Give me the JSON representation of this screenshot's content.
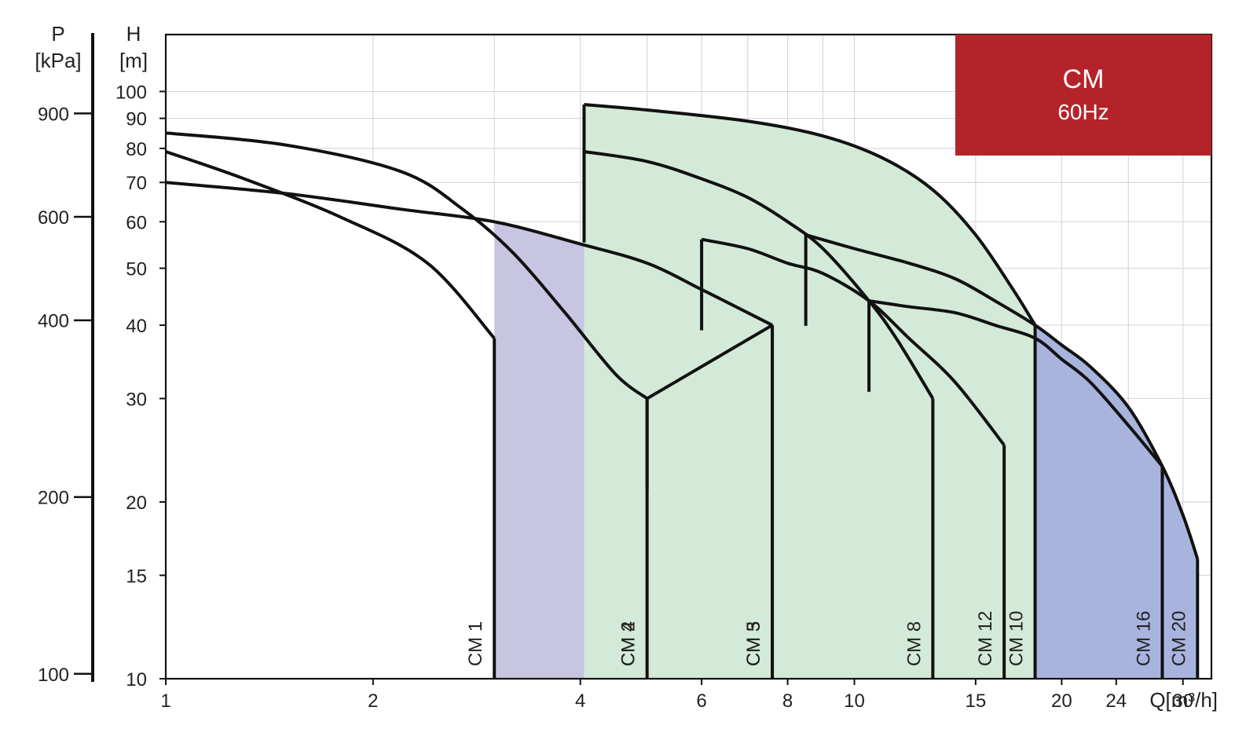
{
  "chart_data": {
    "type": "area",
    "title": "CM",
    "subtitle": "60Hz",
    "x_axis": {
      "label": "Q[m³/h]",
      "scale": "log",
      "range": [
        1,
        33
      ],
      "ticks": [
        1,
        2,
        4,
        6,
        8,
        10,
        15,
        20,
        24,
        30
      ],
      "tick_labels": [
        "1",
        "2",
        "4",
        "6",
        "8",
        "10",
        "15",
        "20",
        "24",
        "30"
      ],
      "gridlines": [
        1,
        2,
        3,
        4,
        5,
        6,
        7,
        8,
        9,
        10,
        15,
        20,
        25,
        30
      ]
    },
    "y_axis": {
      "label_top": "H",
      "unit": "[m]",
      "scale": "log",
      "range": [
        10,
        125
      ],
      "ticks": [
        10,
        15,
        20,
        30,
        40,
        50,
        60,
        70,
        80,
        90,
        100
      ],
      "tick_labels": [
        "10",
        "15",
        "20",
        "30",
        "40",
        "50",
        "60",
        "70",
        "80",
        "90",
        "100"
      ]
    },
    "y2_axis": {
      "label_top": "P",
      "unit": "[kPa]",
      "ticks": [
        100,
        200,
        400,
        600,
        900
      ],
      "tick_labels": [
        "100",
        "200",
        "400",
        "600",
        "900"
      ]
    },
    "grid": true,
    "badge_color": "#B5232A",
    "series": [
      {
        "name": "CM 1",
        "fill": "#D1E8C2",
        "q": [
          1.0,
          1.3,
          1.8,
          2.4,
          3.0
        ],
        "h": [
          79,
          71,
          61,
          51,
          38
        ],
        "q_min": 1.0,
        "q_max": 3.0
      },
      {
        "name": "CM 2",
        "fill": "#FFFFFF",
        "q": [
          1.0,
          1.5,
          2.2,
          2.7,
          3.2,
          3.8,
          4.5,
          5.0
        ],
        "h": [
          85,
          81,
          73,
          63,
          53,
          42,
          33,
          30
        ],
        "q_min": 1.0,
        "q_max": 5.0
      },
      {
        "name": "CM 3",
        "fill": "#C8C5E3",
        "q": [
          1.0,
          1.5,
          2.2,
          3.0,
          4.0,
          5.0,
          6.0,
          7.0,
          7.6
        ],
        "h": [
          70,
          67,
          63,
          60,
          55,
          51,
          46,
          42,
          40
        ],
        "q_min": 3.0,
        "q_max": 7.6
      },
      {
        "name": "CM 4",
        "fill": "#FFFFFF",
        "q": [
          4.0
        ],
        "h": [
          0
        ],
        "q_min": 5.0,
        "q_max": 5.0
      },
      {
        "name": "CM 5",
        "fill": "#C8C5E3",
        "q": [
          5.0,
          7.6
        ],
        "h": [
          30,
          40
        ],
        "q_min": 5.0,
        "q_max": 7.6
      },
      {
        "name": "CM 8",
        "fill": "#FDD9B8",
        "q": [
          4.05,
          5.0,
          6.0,
          7.0,
          8.0,
          9.0,
          10.5,
          11.5,
          13.0
        ],
        "h": [
          79,
          76,
          71,
          66,
          60,
          54,
          44,
          38,
          30
        ],
        "q_min": 4.05,
        "q_max": 13.0
      },
      {
        "name": "CM 12",
        "fill": "#A7DDEB",
        "q": [
          6.0,
          7.0,
          8.0,
          9.0,
          10.5,
          12.0,
          14.0,
          16.5
        ],
        "h": [
          56,
          54,
          51,
          49,
          44,
          38,
          32,
          25
        ],
        "q_min": 10.5,
        "q_max": 16.5
      },
      {
        "name": "CM 10",
        "fill": "#D3EAD8",
        "q": [
          4.05,
          5.0,
          7.0,
          9.0,
          11.0,
          13.0,
          15.0,
          17.0,
          18.3
        ],
        "h": [
          95,
          93,
          89,
          84,
          77,
          68,
          57,
          46,
          40
        ],
        "q_min": 4.05,
        "q_max": 18.3
      },
      {
        "name": "CM 16",
        "fill": "#D497C5",
        "q": [
          10.5,
          12.0,
          14.0,
          16.0,
          18.3,
          20.0,
          22.0,
          25.0,
          28.0
        ],
        "h": [
          44,
          43,
          42,
          40,
          38,
          35,
          32,
          27,
          23
        ],
        "q_min": 18.3,
        "q_max": 28.0
      },
      {
        "name": "CM 20",
        "fill": "#A9B4DE",
        "q": [
          8.5,
          10.0,
          12.0,
          14.0,
          16.0,
          18.3,
          20.0,
          22.0,
          25.0,
          28.0,
          30.0,
          31.5
        ],
        "h": [
          57,
          54,
          51,
          48,
          44,
          40,
          37,
          34,
          29,
          23,
          19,
          16
        ],
        "q_min": 18.3,
        "q_max": 31.5
      }
    ]
  }
}
